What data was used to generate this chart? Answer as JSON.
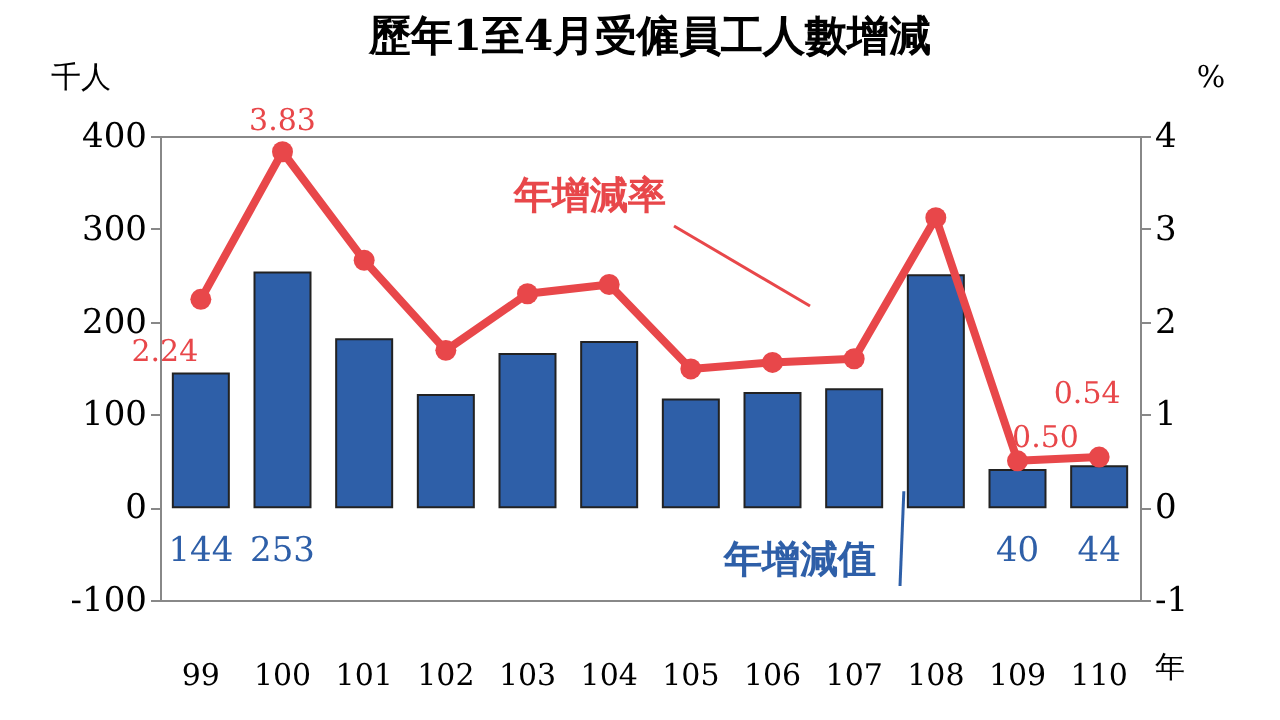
{
  "chart_data": {
    "type": "bar",
    "title": "歷年1至4月受僱員工人數增減",
    "categories": [
      "99",
      "100",
      "101",
      "102",
      "103",
      "104",
      "105",
      "106",
      "107",
      "108",
      "109",
      "110"
    ],
    "xlabel": "年",
    "ylabel": "千人",
    "y2label": "%",
    "series": [
      {
        "color": "#2e5fa8",
        "values": [
          144,
          253,
          181,
          121,
          165,
          178,
          116,
          123,
          127,
          250,
          40,
          44
        ],
        "value_labels": [
          "144",
          "253",
          null,
          null,
          null,
          null,
          null,
          null,
          null,
          null,
          "40",
          "44"
        ]
      },
      {
        "type": "line",
        "axis": "y2",
        "color": "#e8474a",
        "marker": "circle",
        "values": [
          2.24,
          3.83,
          2.66,
          1.69,
          2.3,
          2.4,
          1.49,
          1.56,
          1.6,
          3.12,
          0.5,
          0.54
        ],
        "value_labels": [
          "2.24",
          "3.83",
          null,
          null,
          null,
          null,
          null,
          null,
          null,
          null,
          "0.50",
          "0.54"
        ]
      }
    ],
    "ylim": [
      -100,
      400
    ],
    "yticks": [
      -100,
      0,
      100,
      200,
      300,
      400
    ],
    "y2lim": [
      -1,
      4
    ],
    "y2ticks": [
      -1,
      0,
      1,
      2,
      3,
      4
    ],
    "annotations": [
      "年增減率",
      {
        "text": "年增減值",
        "x": "108",
        "y": 0
      }
    ],
    "grid": false
  }
}
